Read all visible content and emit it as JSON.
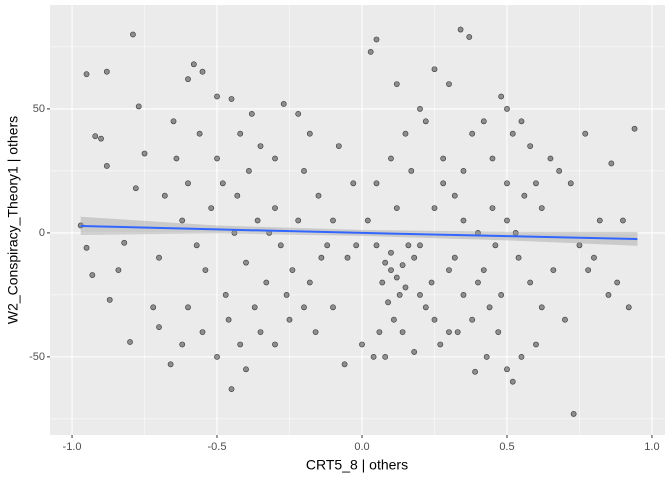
{
  "chart_data": {
    "type": "scatter",
    "x_label": "CRT5_8 | others",
    "y_label": "W2_Conspiracy_Theory1 | others",
    "xlim": [
      -1.076,
      1.045
    ],
    "ylim": [
      -81.5,
      91.9
    ],
    "xticks": [
      {
        "value": -1,
        "label": "-1.0"
      },
      -0.5,
      {
        "value": 0,
        "label": "0.0"
      },
      0.5,
      {
        "value": 1,
        "label": "1.0"
      }
    ],
    "yticks": [
      -50,
      0,
      50
    ],
    "minor_xgrid": [
      -0.75,
      -0.25,
      0.25,
      0.75
    ],
    "minor_ygrid": [
      -75,
      -25,
      25,
      75
    ],
    "grid": true,
    "point_color": "#000000",
    "points": {
      "x": [
        -0.95,
        -0.88,
        -0.79,
        -0.77,
        -0.92,
        -0.9,
        -0.88,
        -0.97,
        -0.95,
        -0.93,
        -0.84,
        -0.87,
        -0.8,
        -0.75,
        -0.78,
        -0.82,
        -0.72,
        -0.7,
        -0.68,
        -0.65,
        -0.6,
        -0.58,
        -0.55,
        -0.5,
        -0.45,
        -0.42,
        -0.38,
        -0.35,
        -0.3,
        -0.27,
        -0.22,
        -0.2,
        -0.15,
        -0.12,
        -0.18,
        -0.25,
        -0.3,
        -0.35,
        -0.4,
        -0.45,
        -0.5,
        -0.55,
        -0.6,
        -0.62,
        -0.66,
        -0.7,
        -0.52,
        -0.48,
        -0.44,
        -0.4,
        -0.36,
        -0.33,
        -0.3,
        -0.28,
        -0.24,
        -0.2,
        -0.16,
        -0.1,
        -0.05,
        -0.03,
        -0.08,
        -0.6,
        -0.57,
        -0.54,
        -0.5,
        -0.47,
        -0.43,
        -0.39,
        -0.37,
        -0.32,
        -0.62,
        -0.64,
        -0.56,
        -0.46,
        -0.42,
        -0.26,
        -0.22,
        -0.18,
        -0.14,
        -0.1,
        0.05,
        0.03,
        0.34,
        0.37,
        0.3,
        0.25,
        0.2,
        0.15,
        0.1,
        0.05,
        0.02,
        0.05,
        0.08,
        0.1,
        0.12,
        0.14,
        0.15,
        0.18,
        0.2,
        0.22,
        0.1,
        0.13,
        0.16,
        0.07,
        0.09,
        0.11,
        0.06,
        0.04,
        0.0,
        -0.02,
        0.25,
        0.28,
        0.32,
        0.35,
        0.38,
        0.42,
        0.45,
        0.48,
        0.5,
        0.52,
        0.55,
        0.58,
        0.6,
        0.62,
        0.65,
        0.68,
        0.72,
        0.75,
        0.78,
        0.8,
        0.82,
        0.85,
        0.88,
        0.9,
        0.92,
        0.94,
        0.77,
        0.86,
        0.7,
        0.73,
        0.6,
        0.55,
        0.52,
        0.5,
        0.47,
        0.44,
        0.4,
        0.38,
        0.35,
        0.32,
        0.3,
        0.27,
        0.24,
        0.2,
        0.42,
        0.46,
        0.5,
        0.54,
        0.58,
        0.62,
        0.66,
        0.45,
        0.4,
        0.35,
        0.3,
        0.25,
        0.18,
        0.14,
        0.5,
        0.56,
        0.53,
        0.48,
        0.43,
        0.39,
        0.33,
        0.28,
        0.22,
        0.17,
        0.12,
        -0.06,
        0.12,
        0.08
      ],
      "y": [
        64,
        65,
        80,
        51,
        39,
        38,
        27,
        3,
        -6,
        -17,
        -15,
        -27,
        -44,
        32,
        18,
        -4,
        -30,
        -10,
        15,
        45,
        62,
        68,
        65,
        55,
        54,
        40,
        48,
        35,
        30,
        52,
        48,
        25,
        15,
        -5,
        -20,
        -35,
        -45,
        -40,
        -55,
        -63,
        -50,
        -40,
        -30,
        -45,
        -53,
        -38,
        10,
        20,
        0,
        -12,
        5,
        -20,
        10,
        -5,
        -15,
        -30,
        -40,
        -30,
        -10,
        20,
        35,
        20,
        -5,
        -15,
        30,
        -25,
        15,
        25,
        -30,
        0,
        5,
        30,
        40,
        -35,
        -45,
        -25,
        5,
        40,
        -10,
        5,
        78,
        73,
        82,
        79,
        60,
        66,
        50,
        40,
        30,
        20,
        5,
        -5,
        -12,
        -15,
        -18,
        -13,
        -22,
        -10,
        -25,
        -30,
        -8,
        -25,
        -5,
        -20,
        -28,
        -35,
        -40,
        -50,
        -45,
        -5,
        10,
        20,
        15,
        25,
        40,
        45,
        30,
        55,
        50,
        40,
        45,
        35,
        20,
        10,
        30,
        25,
        20,
        -5,
        -15,
        -10,
        5,
        -25,
        -20,
        5,
        -30,
        42,
        40,
        28,
        -35,
        -73,
        -45,
        -50,
        -60,
        -55,
        -40,
        -30,
        -20,
        -35,
        -25,
        -10,
        -40,
        -45,
        -20,
        -5,
        -15,
        -5,
        5,
        -10,
        -20,
        -30,
        -15,
        10,
        0,
        5,
        -15,
        -35,
        -48,
        -40,
        20,
        15,
        0,
        -25,
        -50,
        -56,
        -40,
        30,
        45,
        25,
        10,
        -53,
        60,
        -50
      ]
    },
    "smooth": {
      "color": "#3366FF",
      "band_color": "#999999",
      "x": [
        -0.97,
        -0.5,
        0,
        0.5,
        0.95
      ],
      "y": [
        2.8,
        1.4,
        0,
        -1.3,
        -2.5
      ],
      "lower": [
        -0.8,
        -0.2,
        -1.2,
        -3.0,
        -5.2
      ],
      "upper": [
        6.5,
        3.0,
        1.2,
        0.4,
        0.4
      ]
    }
  }
}
